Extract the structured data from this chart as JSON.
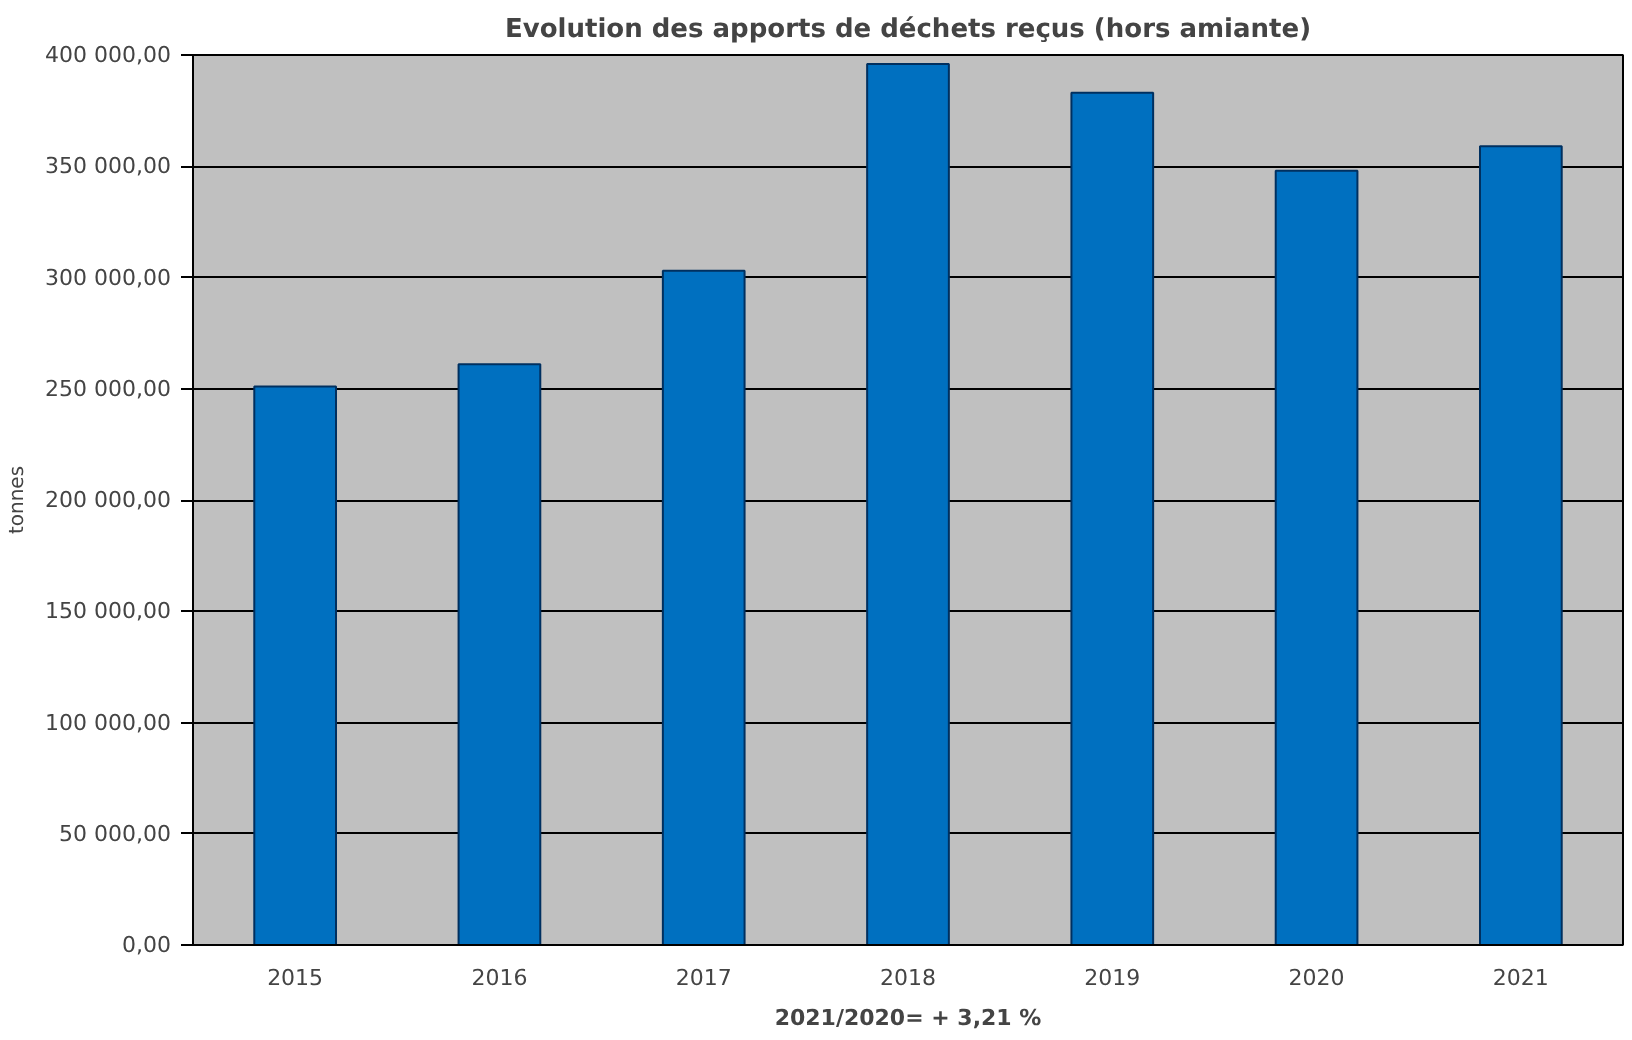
{
  "chart_data": {
    "type": "bar",
    "title": "Evolution des apports de déchets reçus (hors amiante)",
    "ylabel": "tonnes",
    "categories": [
      "2015",
      "2016",
      "2017",
      "2018",
      "2019",
      "2020",
      "2021"
    ],
    "values": [
      251000,
      261000,
      303000,
      396000,
      383000,
      348000,
      359000
    ],
    "color": "#0070c0",
    "ylim": [
      0,
      400000
    ],
    "yticks": [
      {
        "value": 0,
        "label": "0,00"
      },
      {
        "value": 50000,
        "label": "50 000,00"
      },
      {
        "value": 100000,
        "label": "100 000,00"
      },
      {
        "value": 150000,
        "label": "150 000,00"
      },
      {
        "value": 200000,
        "label": "200 000,00"
      },
      {
        "value": 250000,
        "label": "250 000,00"
      },
      {
        "value": 300000,
        "label": "300 000,00"
      },
      {
        "value": 350000,
        "label": "350 000,00"
      },
      {
        "value": 400000,
        "label": "400 000,00"
      }
    ],
    "grid": "y",
    "annotations": [
      "2021/2020= + 3,21 %"
    ]
  }
}
